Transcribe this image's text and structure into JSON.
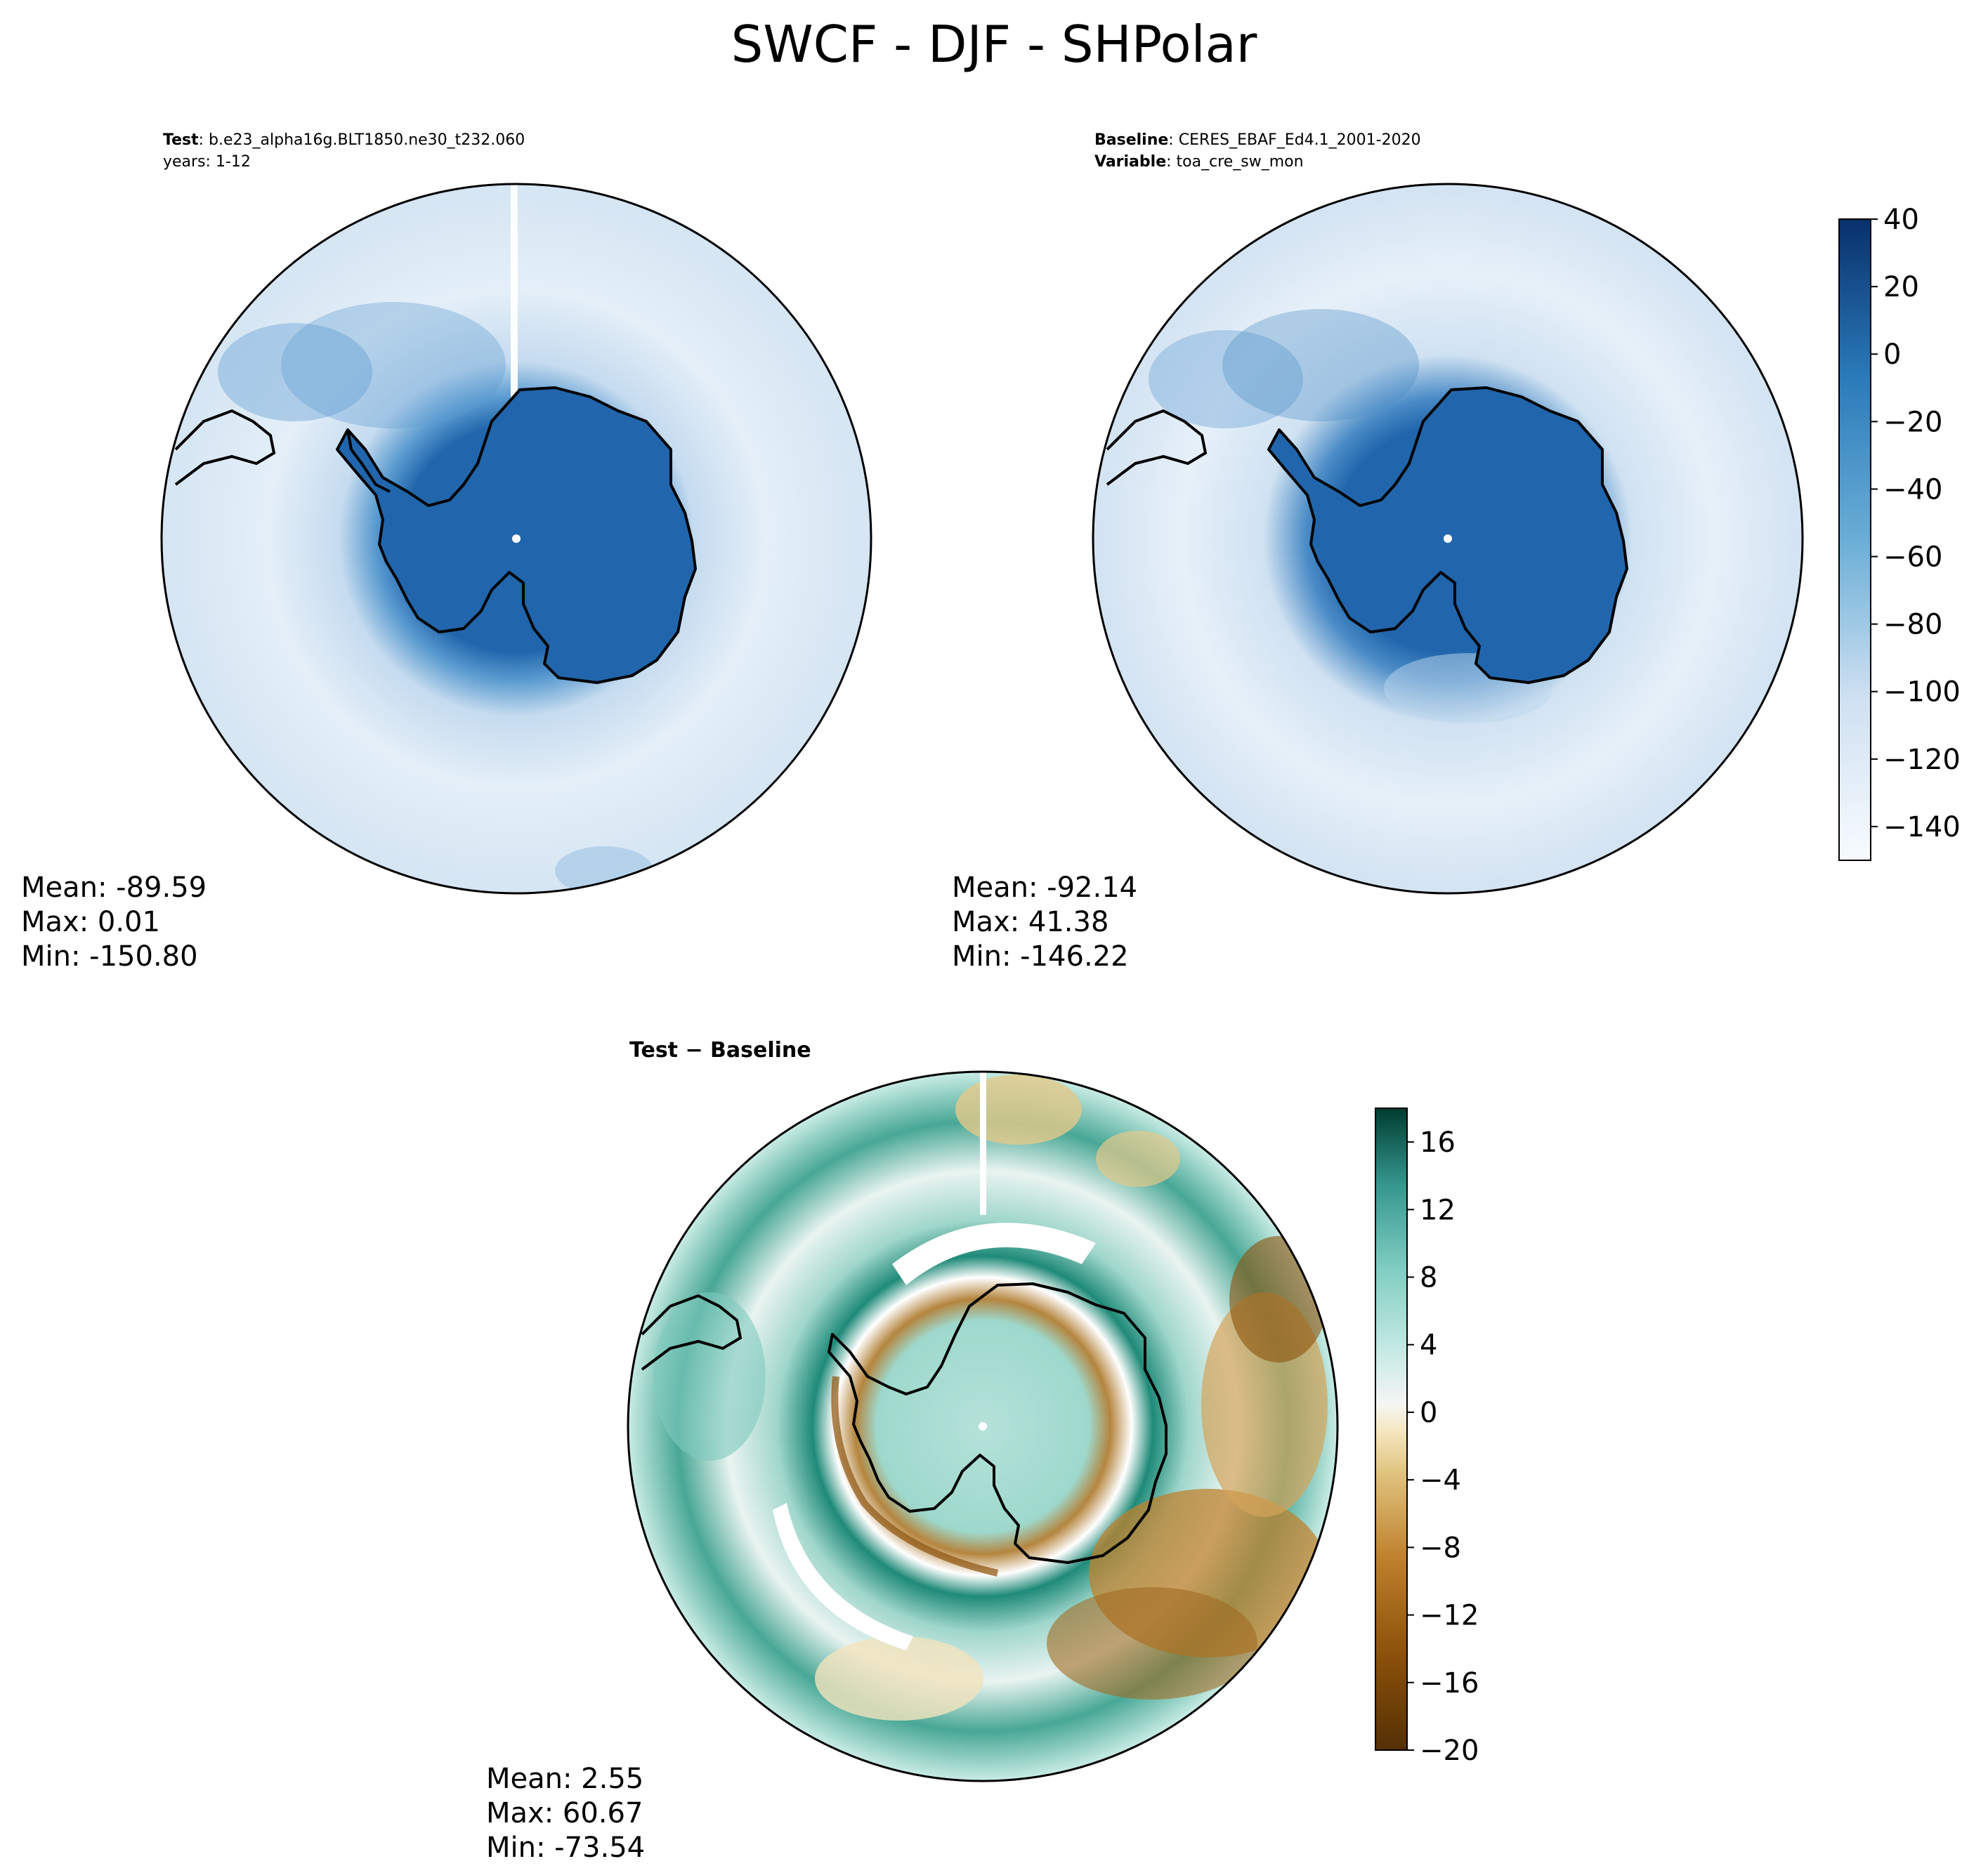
{
  "suptitle": "SWCF - DJF - SHPolar",
  "colors": {
    "land_fill": "#2166ac",
    "ocean_fill": "#dbe8f5",
    "coast": "#000000"
  },
  "panels": {
    "test": {
      "header_line1_bold": "Test",
      "header_line1_text": ": b.e23_alpha16g.BLT1850.ne30_t232.060",
      "header_line2": "years: 1-12",
      "stats": {
        "mean": "Mean: -89.59",
        "max": "Max:  0.01",
        "min": "Min: -150.80"
      }
    },
    "baseline": {
      "header_line1_bold": "Baseline",
      "header_line1_text": ": CERES_EBAF_Ed4.1_2001-2020",
      "header_line2_bold": "Variable",
      "header_line2_text": ": toa_cre_sw_mon",
      "stats": {
        "mean": "Mean: -92.14",
        "max": "Max: 41.38",
        "min": "Min: -146.22"
      }
    },
    "diff": {
      "title": "Test − Baseline",
      "stats": {
        "mean": "Mean:  2.55",
        "max": "Max: 60.67",
        "min": "Min: -73.54"
      }
    }
  },
  "chart_data": [
    {
      "type": "heatmap",
      "panel": "Test",
      "projection": "south-polar-stereographic",
      "colormap": "Blues",
      "colorbar": {
        "ticks": [
          "40",
          "20",
          "0",
          "−20",
          "−40",
          "−60",
          "−80",
          "−100",
          "−120",
          "−140"
        ],
        "range": [
          -150,
          40
        ],
        "levels": [
          -150,
          -140,
          -130,
          -120,
          -110,
          -100,
          -90,
          -80,
          -70,
          -60,
          -50,
          -40,
          -30,
          -20,
          -10,
          0,
          10,
          20,
          30,
          40
        ]
      },
      "mean": -89.59,
      "max": 0.01,
      "min": -150.8
    },
    {
      "type": "heatmap",
      "panel": "Baseline",
      "projection": "south-polar-stereographic",
      "colormap": "Blues",
      "colorbar": {
        "ticks": [
          "40",
          "20",
          "0",
          "−20",
          "−40",
          "−60",
          "−80",
          "−100",
          "−120",
          "−140"
        ],
        "range": [
          -150,
          40
        ]
      },
      "mean": -92.14,
      "max": 41.38,
      "min": -146.22
    },
    {
      "type": "heatmap",
      "panel": "Test − Baseline",
      "projection": "south-polar-stereographic",
      "colormap": "BrBG",
      "colorbar": {
        "ticks": [
          "16",
          "12",
          "8",
          "4",
          "0",
          "−4",
          "−8",
          "−12",
          "−16",
          "−20"
        ],
        "range": [
          -20,
          18
        ],
        "levels": [
          -20,
          -18,
          -16,
          -14,
          -12,
          -10,
          -8,
          -6,
          -4,
          -2,
          0,
          2,
          4,
          6,
          8,
          10,
          12,
          14,
          16,
          18
        ]
      },
      "mean": 2.55,
      "max": 60.67,
      "min": -73.54
    }
  ]
}
